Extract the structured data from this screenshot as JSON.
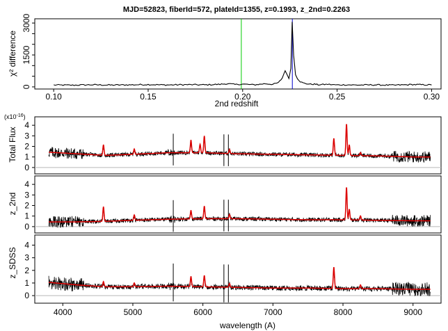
{
  "chart_data": [
    {
      "type": "line",
      "title": "MJD=52823, fiberId=572, plateId=1355, z=0.1993, z_2nd=0.2263",
      "xlabel": "2nd redshift",
      "ylabel": "χ² difference",
      "xlim": [
        0.09,
        0.305
      ],
      "ylim": [
        -100,
        3200
      ],
      "xticks": [
        "0.10",
        "0.15",
        "0.20",
        "0.25",
        "0.30"
      ],
      "yticks": [
        "0",
        "1500",
        "3000"
      ],
      "yticks_unlabeled": [
        500,
        1000,
        2000,
        2500
      ],
      "series": [
        {
          "color": "#000000",
          "x": [
            0.1,
            0.11,
            0.12,
            0.13,
            0.14,
            0.15,
            0.16,
            0.17,
            0.18,
            0.188,
            0.192,
            0.196,
            0.2,
            0.206,
            0.212,
            0.216,
            0.219,
            0.221,
            0.2225,
            0.2235,
            0.2245,
            0.2255,
            0.2262,
            0.227,
            0.228,
            0.229,
            0.2305,
            0.232,
            0.234,
            0.236,
            0.238,
            0.24,
            0.245,
            0.25,
            0.255,
            0.26,
            0.27,
            0.28,
            0.29,
            0.3
          ],
          "values": [
            90,
            80,
            100,
            85,
            95,
            110,
            90,
            105,
            95,
            120,
            150,
            110,
            130,
            95,
            150,
            120,
            200,
            420,
            780,
            560,
            400,
            900,
            3050,
            1500,
            600,
            400,
            250,
            180,
            150,
            120,
            130,
            100,
            120,
            90,
            100,
            85,
            95,
            80,
            110,
            90
          ]
        }
      ],
      "vlines": [
        {
          "x": 0.1993,
          "color": "#00cc00"
        },
        {
          "x": 0.2263,
          "color": "#0000cc"
        }
      ]
    },
    {
      "type": "line",
      "ylabel": "Total Flux",
      "y_exponent_label": "(x10",
      "y_exponent_power": "-16",
      "y_exponent_close": ")",
      "ylim": [
        -0.6,
        4.8
      ],
      "yticks": [
        "0",
        "1",
        "2",
        "3",
        "4"
      ],
      "hline": 0,
      "series": [
        {
          "name": "spectrum",
          "color": "#000000",
          "continuum": [
            [
              3800,
              1.45
            ],
            [
              4200,
              1.3
            ],
            [
              4600,
              1.15
            ],
            [
              5000,
              1.25
            ],
            [
              5500,
              1.4
            ],
            [
              6000,
              1.4
            ],
            [
              6500,
              1.3
            ],
            [
              7000,
              1.25
            ],
            [
              7500,
              1.2
            ],
            [
              8000,
              1.15
            ],
            [
              8500,
              1.1
            ],
            [
              9000,
              1.0
            ],
            [
              9250,
              1.0
            ]
          ]
        },
        {
          "name": "model",
          "color": "#dd0000",
          "continuum": [
            [
              3800,
              1.45
            ],
            [
              4200,
              1.3
            ],
            [
              4600,
              1.15
            ],
            [
              5000,
              1.25
            ],
            [
              5500,
              1.4
            ],
            [
              6000,
              1.4
            ],
            [
              6500,
              1.3
            ],
            [
              7000,
              1.25
            ],
            [
              7500,
              1.2
            ],
            [
              8000,
              1.15
            ],
            [
              8500,
              1.1
            ],
            [
              9000,
              1.0
            ],
            [
              9250,
              1.0
            ]
          ]
        }
      ],
      "emission_lines": [
        [
          4580,
          1.0
        ],
        [
          5020,
          0.5
        ],
        [
          5830,
          1.2
        ],
        [
          5960,
          0.8
        ],
        [
          6020,
          1.6
        ],
        [
          6380,
          0.4
        ],
        [
          7870,
          1.6
        ],
        [
          8050,
          3.0
        ],
        [
          8090,
          1.0
        ],
        [
          8250,
          0.3
        ]
      ]
    },
    {
      "type": "line",
      "ylabel": "z_2nd",
      "ylim": [
        -0.6,
        4.8
      ],
      "yticks": [
        "0",
        "1",
        "2",
        "3",
        "4"
      ],
      "hline": 0,
      "series": [
        {
          "name": "spectrum",
          "color": "#000000",
          "continuum": [
            [
              3800,
              0.45
            ],
            [
              4200,
              0.45
            ],
            [
              4600,
              0.5
            ],
            [
              5000,
              0.6
            ],
            [
              5500,
              0.7
            ],
            [
              6000,
              0.75
            ],
            [
              6500,
              0.75
            ],
            [
              7000,
              0.7
            ],
            [
              7500,
              0.65
            ],
            [
              8000,
              0.65
            ],
            [
              8500,
              0.6
            ],
            [
              9000,
              0.55
            ],
            [
              9250,
              0.55
            ]
          ]
        },
        {
          "name": "model",
          "color": "#dd0000",
          "continuum": [
            [
              3800,
              0.45
            ],
            [
              4200,
              0.45
            ],
            [
              4600,
              0.5
            ],
            [
              5000,
              0.6
            ],
            [
              5500,
              0.7
            ],
            [
              6000,
              0.75
            ],
            [
              6500,
              0.75
            ],
            [
              7000,
              0.7
            ],
            [
              7500,
              0.65
            ],
            [
              8000,
              0.65
            ],
            [
              8500,
              0.6
            ],
            [
              9000,
              0.55
            ],
            [
              9250,
              0.55
            ]
          ]
        }
      ],
      "emission_lines": [
        [
          4580,
          1.4
        ],
        [
          5020,
          0.5
        ],
        [
          5830,
          0.8
        ],
        [
          6020,
          1.2
        ],
        [
          6380,
          0.4
        ],
        [
          8050,
          3.1
        ],
        [
          8090,
          1.0
        ],
        [
          8250,
          0.4
        ]
      ]
    },
    {
      "type": "line",
      "ylabel": "z_SDSS",
      "xlabel": "wavelength (A)",
      "xlim": [
        3600,
        9400
      ],
      "xticks": [
        "4000",
        "5000",
        "6000",
        "7000",
        "8000",
        "9000"
      ],
      "ylim": [
        -0.6,
        4.8
      ],
      "yticks": [
        "0",
        "1",
        "2",
        "3",
        "4"
      ],
      "hline": 0,
      "series": [
        {
          "name": "spectrum",
          "color": "#000000",
          "continuum": [
            [
              3800,
              1.05
            ],
            [
              4200,
              0.85
            ],
            [
              4600,
              0.7
            ],
            [
              5000,
              0.7
            ],
            [
              5500,
              0.75
            ],
            [
              6000,
              0.7
            ],
            [
              6500,
              0.65
            ],
            [
              7000,
              0.6
            ],
            [
              7500,
              0.6
            ],
            [
              8000,
              0.55
            ],
            [
              8500,
              0.55
            ],
            [
              9000,
              0.5
            ],
            [
              9250,
              0.5
            ]
          ]
        },
        {
          "name": "model",
          "color": "#dd0000",
          "continuum": [
            [
              3800,
              1.05
            ],
            [
              4200,
              0.85
            ],
            [
              4600,
              0.7
            ],
            [
              5000,
              0.7
            ],
            [
              5500,
              0.75
            ],
            [
              6000,
              0.7
            ],
            [
              6500,
              0.65
            ],
            [
              7000,
              0.6
            ],
            [
              7500,
              0.6
            ],
            [
              8000,
              0.55
            ],
            [
              8500,
              0.55
            ],
            [
              9000,
              0.5
            ],
            [
              9250,
              0.5
            ]
          ]
        }
      ],
      "emission_lines": [
        [
          4580,
          0.4
        ],
        [
          5020,
          0.3
        ],
        [
          5830,
          0.8
        ],
        [
          6020,
          0.9
        ],
        [
          6380,
          0.3
        ],
        [
          7870,
          1.7
        ],
        [
          8250,
          0.3
        ]
      ]
    }
  ]
}
